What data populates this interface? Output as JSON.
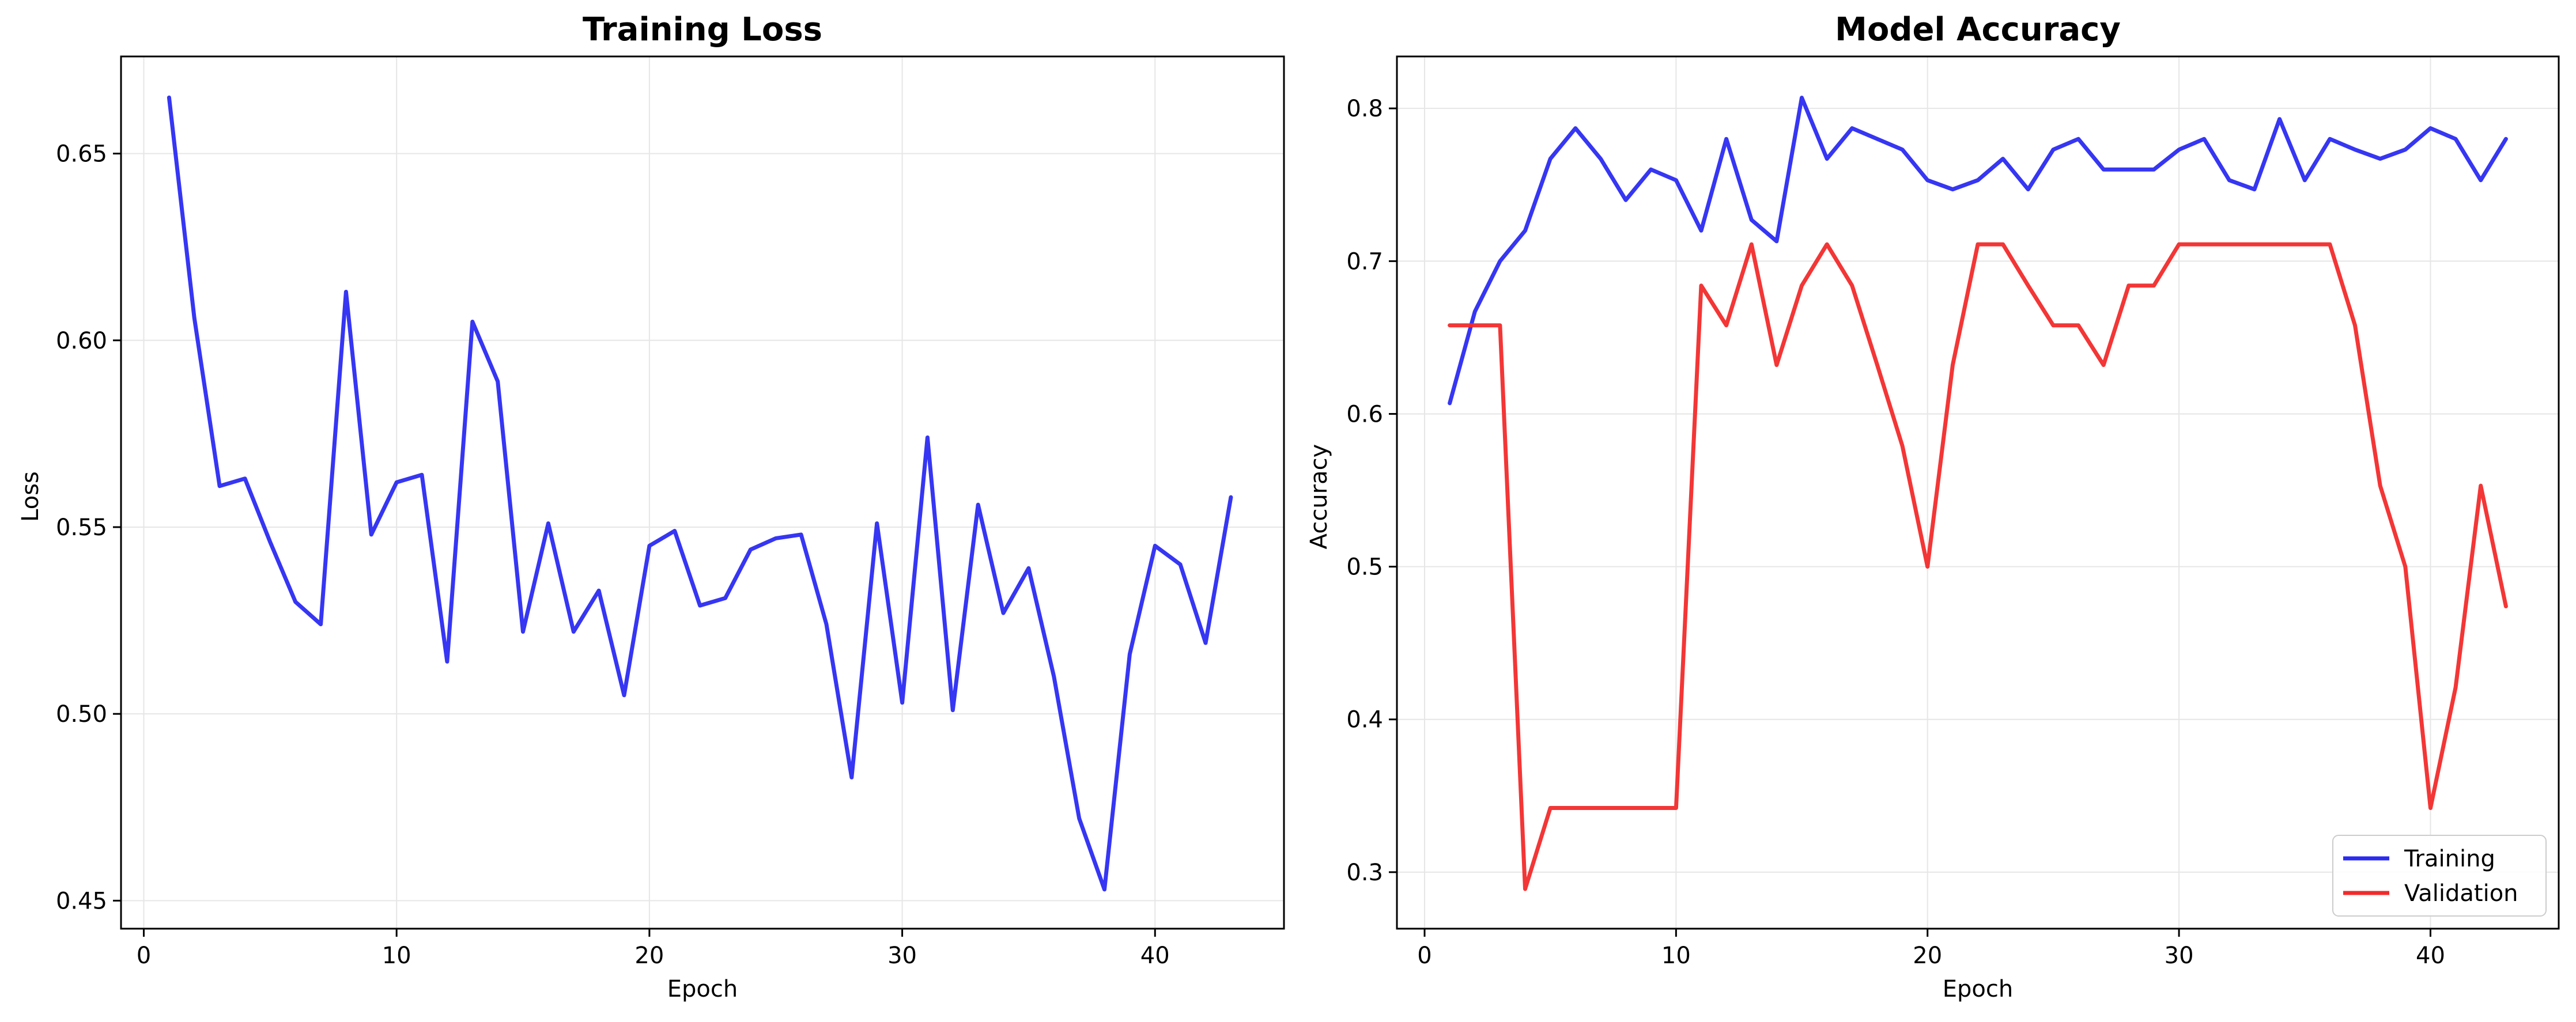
{
  "chart_data": [
    {
      "type": "line",
      "title": "Training Loss",
      "xlabel": "Epoch",
      "ylabel": "Loss",
      "xlim": [
        -0.9,
        45.1
      ],
      "ylim": [
        0.4425,
        0.676
      ],
      "xticks": [
        0,
        10,
        20,
        30,
        40
      ],
      "yticks": [
        0.45,
        0.5,
        0.55,
        0.6,
        0.65
      ],
      "ytick_labels": [
        "0.45",
        "0.50",
        "0.55",
        "0.60",
        "0.65"
      ],
      "grid": true,
      "legend": false,
      "series": [
        {
          "color": "#2b2bf2",
          "x": [
            1,
            2,
            3,
            4,
            5,
            6,
            7,
            8,
            9,
            10,
            11,
            12,
            13,
            14,
            15,
            16,
            17,
            18,
            19,
            20,
            21,
            22,
            23,
            24,
            25,
            26,
            27,
            28,
            29,
            30,
            31,
            32,
            33,
            34,
            35,
            36,
            37,
            38,
            39,
            40,
            41,
            42,
            43
          ],
          "y": [
            0.665,
            0.606,
            0.561,
            0.563,
            0.546,
            0.53,
            0.524,
            0.613,
            0.548,
            0.562,
            0.564,
            0.514,
            0.605,
            0.589,
            0.522,
            0.551,
            0.522,
            0.533,
            0.505,
            0.545,
            0.549,
            0.529,
            0.531,
            0.544,
            0.547,
            0.548,
            0.524,
            0.483,
            0.551,
            0.503,
            0.574,
            0.501,
            0.556,
            0.527,
            0.539,
            0.51,
            0.472,
            0.453,
            0.516,
            0.545,
            0.54,
            0.519,
            0.558
          ]
        }
      ]
    },
    {
      "type": "line",
      "title": "Model Accuracy",
      "xlabel": "Epoch",
      "ylabel": "Accuracy",
      "xlim": [
        -1.1,
        45.1
      ],
      "ylim": [
        0.263,
        0.834
      ],
      "xticks": [
        0,
        10,
        20,
        30,
        40
      ],
      "yticks": [
        0.3,
        0.4,
        0.5,
        0.6,
        0.7,
        0.8
      ],
      "ytick_labels": [
        "0.3",
        "0.4",
        "0.5",
        "0.6",
        "0.7",
        "0.8"
      ],
      "grid": true,
      "legend": "bottom-right",
      "series": [
        {
          "name": "Training",
          "color": "#2b2bf2",
          "x": [
            1,
            2,
            3,
            4,
            5,
            6,
            7,
            8,
            9,
            10,
            11,
            12,
            13,
            14,
            15,
            16,
            17,
            18,
            19,
            20,
            21,
            22,
            23,
            24,
            25,
            26,
            27,
            28,
            29,
            30,
            31,
            32,
            33,
            34,
            35,
            36,
            37,
            38,
            39,
            40,
            41,
            42,
            43
          ],
          "y": [
            0.607,
            0.667,
            0.7,
            0.72,
            0.767,
            0.787,
            0.767,
            0.74,
            0.76,
            0.753,
            0.72,
            0.78,
            0.727,
            0.713,
            0.807,
            0.767,
            0.787,
            0.78,
            0.773,
            0.753,
            0.747,
            0.753,
            0.767,
            0.747,
            0.773,
            0.78,
            0.76,
            0.76,
            0.76,
            0.773,
            0.78,
            0.753,
            0.747,
            0.793,
            0.753,
            0.78,
            0.773,
            0.767,
            0.773,
            0.787,
            0.78,
            0.753,
            0.78
          ]
        },
        {
          "name": "Validation",
          "color": "#f22b2b",
          "x": [
            1,
            2,
            3,
            4,
            5,
            6,
            7,
            8,
            9,
            10,
            11,
            12,
            13,
            14,
            15,
            16,
            17,
            18,
            19,
            20,
            21,
            22,
            23,
            24,
            25,
            26,
            27,
            28,
            29,
            30,
            31,
            32,
            33,
            34,
            35,
            36,
            37,
            38,
            39,
            40,
            41,
            42,
            43
          ],
          "y": [
            0.658,
            0.658,
            0.658,
            0.289,
            0.342,
            0.342,
            0.342,
            0.342,
            0.342,
            0.342,
            0.684,
            0.658,
            0.711,
            0.632,
            0.684,
            0.711,
            0.684,
            0.632,
            0.579,
            0.5,
            0.632,
            0.711,
            0.711,
            0.684,
            0.658,
            0.658,
            0.632,
            0.684,
            0.684,
            0.711,
            0.711,
            0.711,
            0.711,
            0.711,
            0.711,
            0.711,
            0.658,
            0.553,
            0.5,
            0.342,
            0.421,
            0.553,
            0.474
          ]
        }
      ]
    }
  ]
}
